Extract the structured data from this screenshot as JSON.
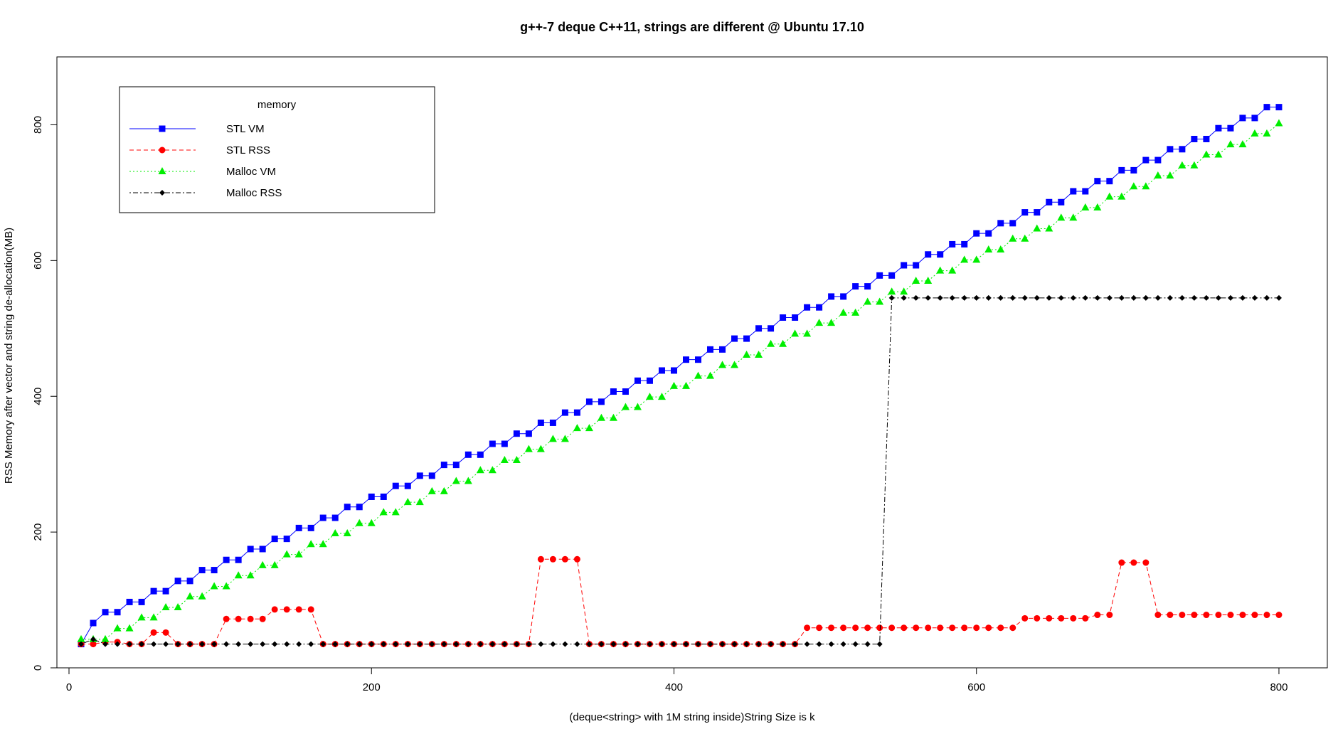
{
  "chart_data": {
    "type": "line",
    "title": "g++-7 deque C++11, strings are different @ Ubuntu 17.10",
    "xlabel": "(deque<string> with 1M string inside)String Size is k",
    "ylabel": "RSS Memory after vector and string de-allocation(MB)",
    "xlim": [
      -8,
      832
    ],
    "ylim": [
      0,
      900
    ],
    "xticks": [
      0,
      200,
      400,
      600,
      800
    ],
    "yticks": [
      0,
      200,
      400,
      600,
      800
    ],
    "legend_title": "memory",
    "legend_position": "top-left",
    "grid": false,
    "x": [
      8,
      16,
      24,
      32,
      40,
      48,
      56,
      64,
      72,
      80,
      88,
      96,
      104,
      112,
      120,
      128,
      136,
      144,
      152,
      160,
      168,
      176,
      184,
      192,
      200,
      208,
      216,
      224,
      232,
      240,
      248,
      256,
      264,
      272,
      280,
      288,
      296,
      304,
      312,
      320,
      328,
      336,
      344,
      352,
      360,
      368,
      376,
      384,
      392,
      400,
      408,
      416,
      424,
      432,
      440,
      448,
      456,
      464,
      472,
      480,
      488,
      496,
      504,
      512,
      520,
      528,
      536,
      544,
      552,
      560,
      568,
      576,
      584,
      592,
      600,
      608,
      616,
      624,
      632,
      640,
      648,
      656,
      664,
      672,
      680,
      688,
      696,
      704,
      712,
      720,
      728,
      736,
      744,
      752,
      760,
      768,
      776,
      784,
      792,
      800
    ],
    "series": [
      {
        "name": "STL VM",
        "color": "#0000ff",
        "line": "solid",
        "marker": "square",
        "values": [
          35,
          66,
          82,
          82,
          97,
          97,
          113,
          113,
          128,
          128,
          144,
          144,
          159,
          159,
          175,
          175,
          190,
          190,
          206,
          206,
          221,
          221,
          237,
          237,
          252,
          252,
          268,
          268,
          283,
          283,
          299,
          299,
          314,
          314,
          330,
          330,
          345,
          345,
          361,
          361,
          376,
          376,
          392,
          392,
          407,
          407,
          423,
          423,
          438,
          438,
          454,
          454,
          469,
          469,
          485,
          485,
          500,
          500,
          516,
          516,
          531,
          531,
          547,
          547,
          562,
          562,
          578,
          578,
          593,
          593,
          609,
          609,
          624,
          624,
          640,
          640,
          655,
          655,
          671,
          671,
          686,
          686,
          702,
          702,
          717,
          717,
          733,
          733,
          748,
          748,
          764,
          764,
          779,
          779,
          795,
          795,
          810,
          810,
          826,
          826
        ]
      },
      {
        "name": "STL RSS",
        "color": "#ff0000",
        "line": "dashed",
        "marker": "circle",
        "values": [
          35,
          35,
          38,
          38,
          35,
          35,
          52,
          52,
          35,
          35,
          35,
          35,
          72,
          72,
          72,
          72,
          86,
          86,
          86,
          86,
          35,
          35,
          35,
          35,
          35,
          35,
          35,
          35,
          35,
          35,
          35,
          35,
          35,
          35,
          35,
          35,
          35,
          35,
          160,
          160,
          160,
          160,
          35,
          35,
          35,
          35,
          35,
          35,
          35,
          35,
          35,
          35,
          35,
          35,
          35,
          35,
          35,
          35,
          35,
          35,
          59,
          59,
          59,
          59,
          59,
          59,
          59,
          59,
          59,
          59,
          59,
          59,
          59,
          59,
          59,
          59,
          59,
          59,
          73,
          73,
          73,
          73,
          73,
          73,
          78,
          78,
          155,
          155,
          155,
          78,
          78,
          78,
          78,
          78,
          78,
          78,
          78,
          78,
          78,
          78
        ]
      },
      {
        "name": "Malloc VM",
        "color": "#00ee00",
        "line": "dotted",
        "marker": "triangle",
        "values": [
          42,
          42,
          42,
          58,
          58,
          74,
          74,
          89,
          89,
          105,
          105,
          120,
          120,
          136,
          136,
          151,
          151,
          167,
          167,
          182,
          182,
          198,
          198,
          213,
          213,
          229,
          229,
          244,
          244,
          260,
          260,
          275,
          275,
          291,
          291,
          306,
          306,
          322,
          322,
          337,
          337,
          353,
          353,
          368,
          368,
          384,
          384,
          399,
          399,
          415,
          415,
          430,
          430,
          446,
          446,
          461,
          461,
          477,
          477,
          492,
          492,
          508,
          508,
          523,
          523,
          539,
          539,
          554,
          554,
          570,
          570,
          585,
          585,
          601,
          601,
          616,
          616,
          632,
          632,
          647,
          647,
          663,
          663,
          678,
          678,
          694,
          694,
          709,
          709,
          725,
          725,
          740,
          740,
          756,
          756,
          771,
          771,
          787,
          787,
          802
        ]
      },
      {
        "name": "Malloc RSS",
        "color": "#000000",
        "line": "dotdash",
        "marker": "diamond",
        "values": [
          35,
          42,
          35,
          35,
          35,
          35,
          35,
          35,
          35,
          35,
          35,
          35,
          35,
          35,
          35,
          35,
          35,
          35,
          35,
          35,
          35,
          35,
          35,
          35,
          35,
          35,
          35,
          35,
          35,
          35,
          35,
          35,
          35,
          35,
          35,
          35,
          35,
          35,
          35,
          35,
          35,
          35,
          35,
          35,
          35,
          35,
          35,
          35,
          35,
          35,
          35,
          35,
          35,
          35,
          35,
          35,
          35,
          35,
          35,
          35,
          35,
          35,
          35,
          35,
          35,
          35,
          35,
          545,
          545,
          545,
          545,
          545,
          545,
          545,
          545,
          545,
          545,
          545,
          545,
          545,
          545,
          545,
          545,
          545,
          545,
          545,
          545,
          545,
          545,
          545,
          545,
          545,
          545,
          545,
          545,
          545,
          545,
          545,
          545,
          545
        ]
      }
    ]
  }
}
